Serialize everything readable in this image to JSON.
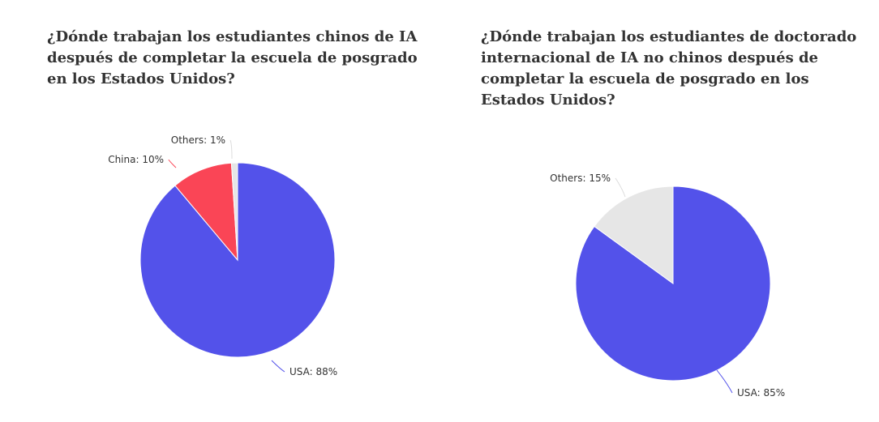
{
  "chart_data": [
    {
      "type": "pie",
      "title": "¿Dónde trabajan los estudiantes chinos de IA después de completar la escuela de posgrado en los Estados Unidos?",
      "slices": [
        {
          "label": "USA",
          "value": 88,
          "display": "USA: 88%",
          "color": "#5352ea"
        },
        {
          "label": "China",
          "value": 10,
          "display": "China: 10%",
          "color": "#fa4556"
        },
        {
          "label": "Others",
          "value": 1,
          "display": "Others: 1%",
          "color": "#e6e6e6"
        }
      ]
    },
    {
      "type": "pie",
      "title": "¿Dónde trabajan los estudiantes de doctorado internacional de IA no chinos después de completar la escuela de posgrado en los Estados Unidos?",
      "slices": [
        {
          "label": "USA",
          "value": 85,
          "display": "USA: 85%",
          "color": "#5352ea"
        },
        {
          "label": "Others",
          "value": 15,
          "display": "Others: 15%",
          "color": "#e6e6e6"
        }
      ]
    }
  ]
}
